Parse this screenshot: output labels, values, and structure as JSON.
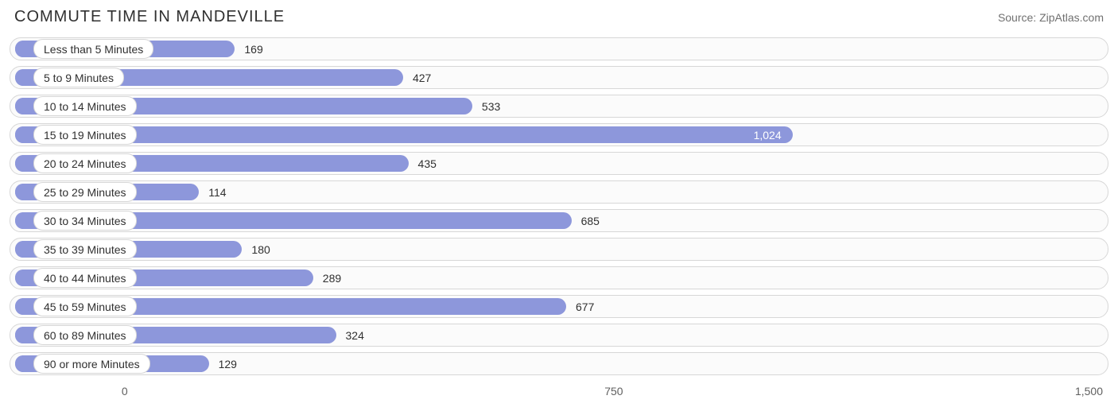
{
  "header": {
    "title": "COMMUTE TIME IN MANDEVILLE",
    "source": "Source: ZipAtlas.com"
  },
  "chart": {
    "type": "bar",
    "orientation": "horizontal",
    "bar_color": "#8d97db",
    "track_border_color": "#d7d7d7",
    "track_bg_color": "#fbfbfb",
    "label_bg_color": "#ffffff",
    "label_border_color": "#d7d7d7",
    "text_color": "#303030",
    "axis_text_color": "#606060",
    "value_inside_color": "#ffffff",
    "value_outside_color": "#303030",
    "background_color": "#ffffff",
    "label_fontsize": 14,
    "title_fontsize": 20,
    "xlim": [
      -168,
      1500
    ],
    "x_ticks": [
      {
        "value": 0,
        "label": "0"
      },
      {
        "value": 750,
        "label": "750"
      },
      {
        "value": 1500,
        "label": "1,500"
      }
    ],
    "bar_origin": -168,
    "rows": [
      {
        "category": "Less than 5 Minutes",
        "value": 169,
        "display": "169",
        "value_inside": false
      },
      {
        "category": "5 to 9 Minutes",
        "value": 427,
        "display": "427",
        "value_inside": false
      },
      {
        "category": "10 to 14 Minutes",
        "value": 533,
        "display": "533",
        "value_inside": false
      },
      {
        "category": "15 to 19 Minutes",
        "value": 1024,
        "display": "1,024",
        "value_inside": true
      },
      {
        "category": "20 to 24 Minutes",
        "value": 435,
        "display": "435",
        "value_inside": false
      },
      {
        "category": "25 to 29 Minutes",
        "value": 114,
        "display": "114",
        "value_inside": false
      },
      {
        "category": "30 to 34 Minutes",
        "value": 685,
        "display": "685",
        "value_inside": false
      },
      {
        "category": "35 to 39 Minutes",
        "value": 180,
        "display": "180",
        "value_inside": false
      },
      {
        "category": "40 to 44 Minutes",
        "value": 289,
        "display": "289",
        "value_inside": false
      },
      {
        "category": "45 to 59 Minutes",
        "value": 677,
        "display": "677",
        "value_inside": false
      },
      {
        "category": "60 to 89 Minutes",
        "value": 324,
        "display": "324",
        "value_inside": false
      },
      {
        "category": "90 or more Minutes",
        "value": 129,
        "display": "129",
        "value_inside": false
      }
    ]
  }
}
